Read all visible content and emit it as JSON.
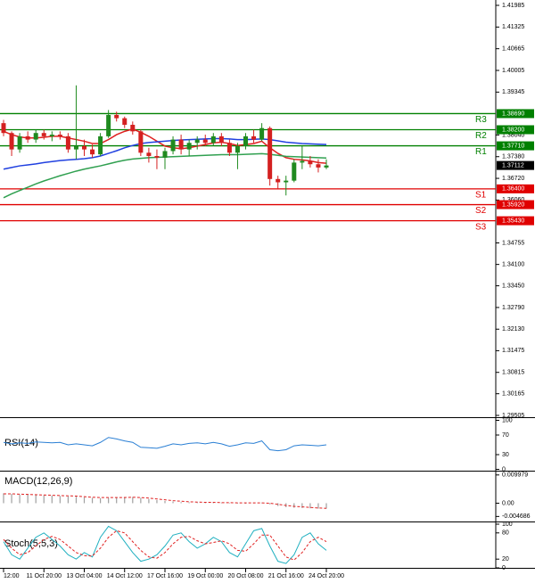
{
  "chart_data": [
    {
      "type": "candlestick",
      "categories": [
        "12:00",
        null,
        null,
        null,
        null,
        "11 Oct 20:00",
        null,
        null,
        null,
        null,
        "13 Oct 04:00",
        null,
        null,
        null,
        null,
        "14 Oct 12:00",
        null,
        null,
        null,
        null,
        "17 Oct 16:00",
        null,
        null,
        null,
        null,
        "19 Oct 00:00",
        null,
        null,
        null,
        null,
        "20 Oct 08:00",
        null,
        null,
        null,
        null,
        "21 Oct 16:00",
        null,
        null,
        null,
        null,
        "24 Oct 20:00"
      ],
      "open": [
        1.384,
        1.381,
        1.376,
        1.38,
        1.379,
        1.381,
        1.38,
        1.3805,
        1.38,
        1.376,
        1.377,
        1.376,
        1.3745,
        1.38,
        1.3865,
        1.3855,
        1.3835,
        1.3815,
        1.375,
        1.374,
        1.3735,
        1.3755,
        1.379,
        1.376,
        1.378,
        1.379,
        1.378,
        1.38,
        1.378,
        1.375,
        1.377,
        1.38,
        1.379,
        1.3825,
        1.367,
        1.366,
        1.3665,
        1.372,
        1.3725,
        1.3715,
        1.3705
      ],
      "high": [
        1.385,
        1.3815,
        1.381,
        1.3815,
        1.382,
        1.382,
        1.3815,
        1.3815,
        1.381,
        1.3955,
        1.379,
        1.3775,
        1.381,
        1.388,
        1.3875,
        1.386,
        1.3845,
        1.382,
        1.3765,
        1.376,
        1.3765,
        1.38,
        1.3805,
        1.379,
        1.38,
        1.3805,
        1.381,
        1.381,
        1.379,
        1.378,
        1.381,
        1.382,
        1.384,
        1.383,
        1.368,
        1.368,
        1.373,
        1.377,
        1.374,
        1.373,
        1.373
      ],
      "low": [
        1.38,
        1.374,
        1.375,
        1.378,
        1.378,
        1.379,
        1.3785,
        1.379,
        1.375,
        1.373,
        1.374,
        1.3735,
        1.374,
        1.3795,
        1.3845,
        1.3825,
        1.3805,
        1.374,
        1.372,
        1.37,
        1.37,
        1.3745,
        1.3745,
        1.374,
        1.376,
        1.377,
        1.377,
        1.377,
        1.374,
        1.37,
        1.376,
        1.378,
        1.3785,
        1.365,
        1.364,
        1.362,
        1.366,
        1.37,
        1.3705,
        1.369,
        1.37
      ],
      "close": [
        1.381,
        1.376,
        1.38,
        1.379,
        1.381,
        1.38,
        1.3805,
        1.38,
        1.376,
        1.377,
        1.376,
        1.3745,
        1.38,
        1.3865,
        1.3855,
        1.3835,
        1.3815,
        1.375,
        1.374,
        1.3735,
        1.3755,
        1.379,
        1.376,
        1.378,
        1.379,
        1.378,
        1.38,
        1.378,
        1.375,
        1.377,
        1.38,
        1.379,
        1.3825,
        1.367,
        1.366,
        1.3665,
        1.372,
        1.3725,
        1.3715,
        1.3705,
        1.37112
      ],
      "up_color": "#1f8a1f",
      "down_color": "#d42020",
      "overlays": [
        {
          "color": "#e02020",
          "values": [
            1.3815,
            1.3805,
            1.3798,
            1.3795,
            1.3795,
            1.3797,
            1.38,
            1.38,
            1.3795,
            1.379,
            1.3785,
            1.3778,
            1.3778,
            1.379,
            1.3805,
            1.3815,
            1.3822,
            1.3812,
            1.38,
            1.3785,
            1.377,
            1.3765,
            1.3762,
            1.3765,
            1.377,
            1.3775,
            1.378,
            1.3782,
            1.3778,
            1.3772,
            1.3775,
            1.3778,
            1.3785,
            1.3765,
            1.3748,
            1.3735,
            1.373,
            1.3728,
            1.3725,
            1.372,
            1.3718
          ]
        },
        {
          "color": "#2040e0",
          "values": [
            1.37,
            1.3705,
            1.371,
            1.3713,
            1.3716,
            1.372,
            1.3723,
            1.3726,
            1.3728,
            1.373,
            1.3732,
            1.3735,
            1.374,
            1.3748,
            1.3756,
            1.3765,
            1.3772,
            1.3778,
            1.3781,
            1.3783,
            1.3785,
            1.3787,
            1.3789,
            1.379,
            1.3791,
            1.3792,
            1.3793,
            1.3793,
            1.3792,
            1.379,
            1.379,
            1.3791,
            1.3792,
            1.379,
            1.3786,
            1.3782,
            1.378,
            1.3778,
            1.3777,
            1.3776,
            1.3775
          ]
        },
        {
          "color": "#30a050",
          "values": [
            1.3613,
            1.3625,
            1.3635,
            1.3645,
            1.3655,
            1.3664,
            1.3672,
            1.368,
            1.3687,
            1.3694,
            1.37,
            1.3705,
            1.371,
            1.3716,
            1.3722,
            1.3727,
            1.3731,
            1.3733,
            1.3735,
            1.3736,
            1.3737,
            1.3738,
            1.3739,
            1.374,
            1.3741,
            1.3742,
            1.3743,
            1.3744,
            1.3744,
            1.3744,
            1.3745,
            1.3746,
            1.3747,
            1.3745,
            1.3742,
            1.3739,
            1.3738,
            1.3737,
            1.3736,
            1.3735,
            1.3734
          ]
        }
      ],
      "levels": [
        {
          "name": "R3",
          "value": 1.3869,
          "label": "1.38690",
          "color": "#008000"
        },
        {
          "name": "R2",
          "value": 1.382,
          "label": "1.38200",
          "color": "#008000"
        },
        {
          "name": "R1",
          "value": 1.3771,
          "label": "1.37710",
          "color": "#008000"
        },
        {
          "name": "S1",
          "value": 1.364,
          "label": "1.36400",
          "color": "#e00000"
        },
        {
          "name": "S2",
          "value": 1.3592,
          "label": "1.35920",
          "color": "#e00000"
        },
        {
          "name": "S3",
          "value": 1.3543,
          "label": "1.35430",
          "color": "#e00000"
        }
      ],
      "last_price": 1.37112,
      "ylim": [
        1.29451,
        1.42148
      ],
      "yticks": [
        1.41985,
        1.41325,
        1.40665,
        1.40005,
        1.39345,
        {
          "value": 1.3804,
          "label": "1.38040"
        },
        {
          "value": 1.3738,
          "label": "1.37380"
        },
        {
          "value": 1.3672,
          "label": "1.36720"
        },
        {
          "value": 1.3606,
          "label": "1.36060"
        },
        1.34755,
        {
          "value": 1.341,
          "label": "1.34100"
        },
        {
          "value": 1.3345,
          "label": "1.33450"
        },
        {
          "value": 1.3279,
          "label": "1.32790"
        },
        {
          "value": 1.3213,
          "label": "1.32130"
        },
        1.31475,
        1.30815,
        1.30165,
        1.29505
      ]
    },
    {
      "type": "line",
      "title": "RSI(14)",
      "series": [
        {
          "color": "#2a7fd4",
          "values": [
            55,
            52,
            54,
            53,
            56,
            55,
            54,
            55,
            50,
            52,
            50,
            48,
            55,
            65,
            62,
            58,
            55,
            45,
            44,
            43,
            47,
            52,
            50,
            53,
            54,
            52,
            55,
            52,
            47,
            50,
            54,
            53,
            58,
            40,
            38,
            40,
            48,
            50,
            49,
            48,
            50
          ]
        }
      ],
      "ylim": [
        0,
        100
      ],
      "yticks": [
        100,
        70,
        30,
        0
      ]
    },
    {
      "type": "bar",
      "title": "MACD(12,26,9)",
      "series": [
        {
          "color": "#a0a0a0",
          "style": "histogram",
          "values": [
            0.0035,
            0.0033,
            0.0031,
            0.003,
            0.0029,
            0.0028,
            0.0027,
            0.0026,
            0.0024,
            0.0023,
            0.0021,
            0.0019,
            0.0018,
            0.0019,
            0.0021,
            0.0022,
            0.0022,
            0.0019,
            0.0015,
            0.0011,
            0.0008,
            0.0006,
            0.0004,
            0.0003,
            0.0003,
            0.0002,
            0.0002,
            0.0002,
            0.0001,
            0.0,
            0.0,
            0.0001,
            0.0002,
            -0.0004,
            -0.001,
            -0.0014,
            -0.0016,
            -0.0017,
            -0.0018,
            -0.0019,
            -0.0019
          ]
        },
        {
          "color": "#e02020",
          "style": "dashed",
          "values": [
            0.0033,
            0.0033,
            0.0032,
            0.0031,
            0.003,
            0.0029,
            0.0028,
            0.0027,
            0.0026,
            0.0025,
            0.0023,
            0.0021,
            0.002,
            0.002,
            0.002,
            0.002,
            0.0021,
            0.002,
            0.0018,
            0.0015,
            0.0012,
            0.0009,
            0.0007,
            0.0005,
            0.0004,
            0.0003,
            0.0003,
            0.0002,
            0.0002,
            0.0001,
            0.0001,
            0.0001,
            0.0001,
            0.0,
            -0.0004,
            -0.0008,
            -0.0011,
            -0.0013,
            -0.0015,
            -0.0017,
            -0.0018
          ]
        }
      ],
      "ylim": [
        -0.00615,
        0.01086
      ],
      "yticks": [
        0.009979,
        {
          "value": 0,
          "label": "0.00"
        },
        -0.004686
      ]
    },
    {
      "type": "line",
      "title": "Stoch(5,5,3)",
      "series": [
        {
          "color": "#20b0c0",
          "values": [
            60,
            30,
            20,
            45,
            70,
            80,
            65,
            50,
            30,
            20,
            35,
            25,
            70,
            95,
            85,
            60,
            35,
            15,
            20,
            30,
            50,
            75,
            80,
            60,
            45,
            55,
            70,
            60,
            35,
            25,
            55,
            85,
            90,
            50,
            15,
            10,
            30,
            70,
            80,
            55,
            40
          ]
        },
        {
          "color": "#e02020",
          "style": "dashed",
          "values": [
            65,
            45,
            30,
            35,
            50,
            65,
            72,
            65,
            50,
            35,
            28,
            27,
            45,
            70,
            85,
            80,
            60,
            40,
            25,
            22,
            35,
            55,
            70,
            72,
            62,
            55,
            58,
            62,
            55,
            40,
            38,
            55,
            75,
            75,
            50,
            25,
            18,
            35,
            60,
            70,
            60
          ]
        }
      ],
      "ylim": [
        0,
        100
      ],
      "yticks": [
        100,
        80,
        20,
        0
      ]
    }
  ]
}
